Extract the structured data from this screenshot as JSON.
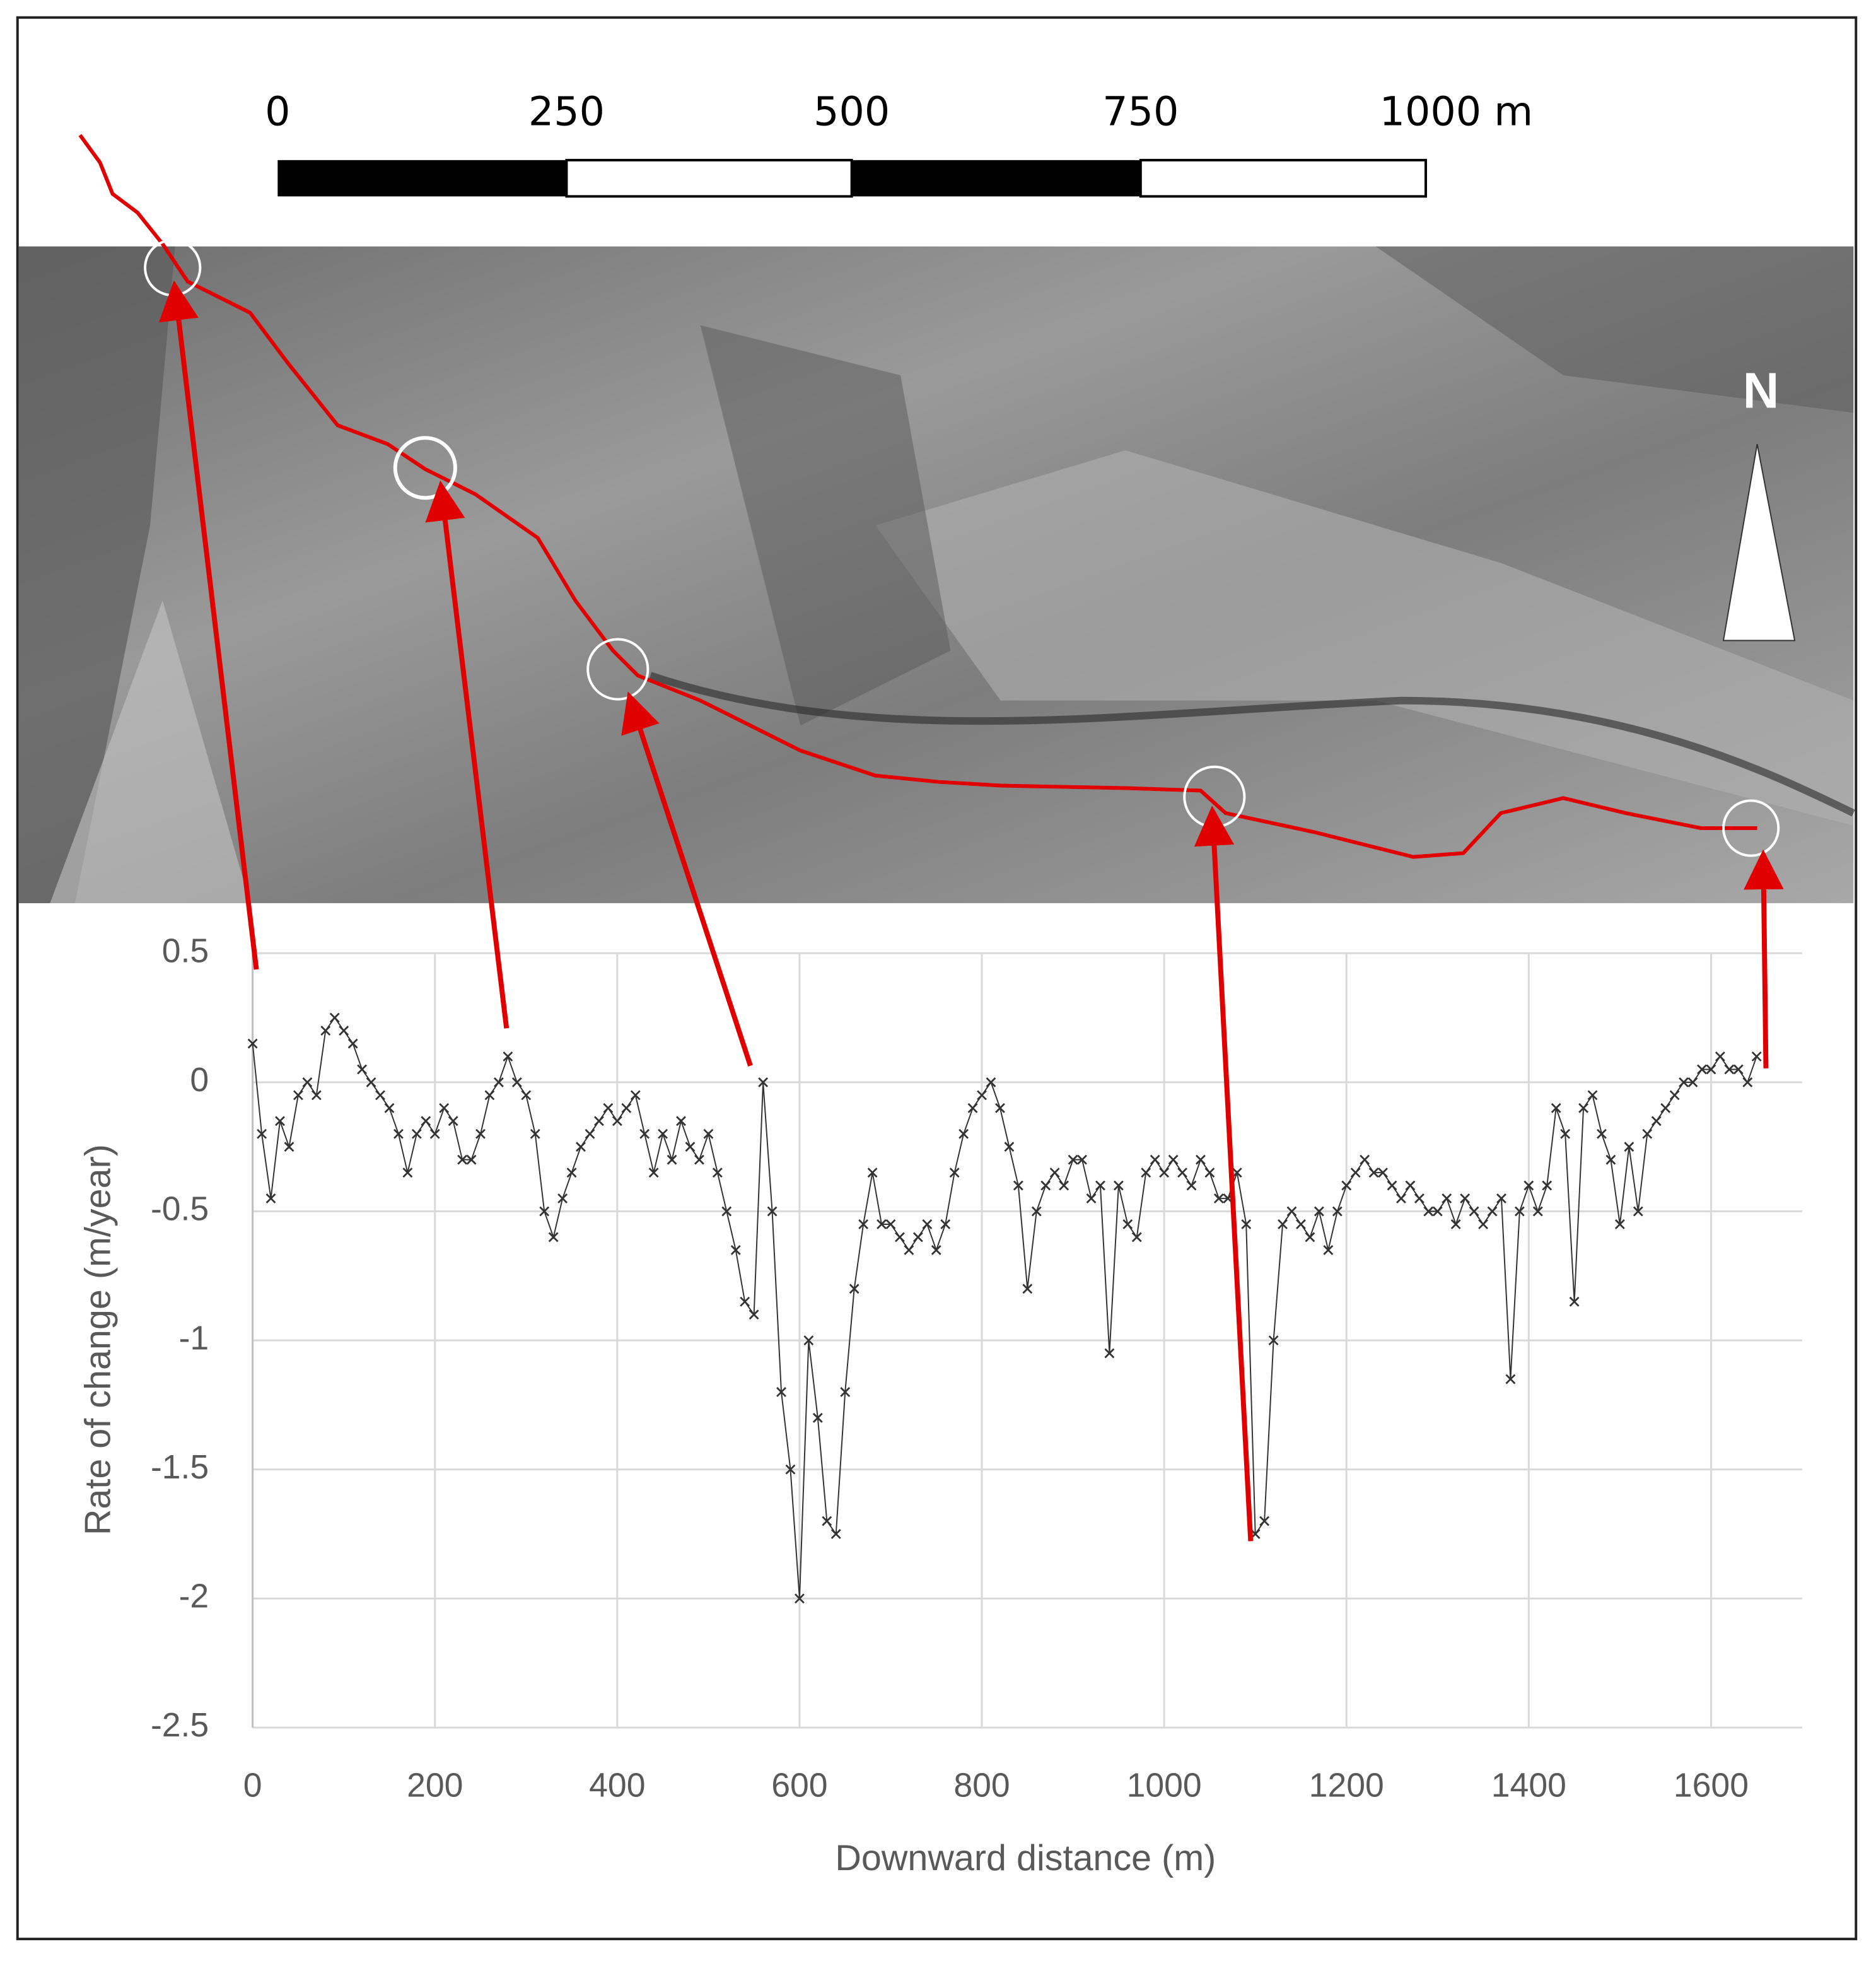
{
  "map": {
    "scale_labels": [
      "0",
      "250",
      "500",
      "750",
      "1000 m"
    ],
    "north": "N"
  },
  "chart_data": {
    "type": "line",
    "y_label": "Rate of change (m/year)",
    "x_label": "Downward distance (m)",
    "x": [
      0,
      10,
      20,
      30,
      40,
      50,
      60,
      70,
      80,
      90,
      100,
      110,
      120,
      130,
      140,
      150,
      160,
      170,
      180,
      190,
      200,
      210,
      220,
      230,
      240,
      250,
      260,
      270,
      280,
      290,
      300,
      310,
      320,
      330,
      340,
      350,
      360,
      370,
      380,
      390,
      400,
      410,
      420,
      430,
      440,
      450,
      460,
      470,
      480,
      490,
      500,
      510,
      520,
      530,
      540,
      550,
      560,
      570,
      580,
      590,
      600,
      610,
      620,
      630,
      640,
      650,
      660,
      670,
      680,
      690,
      700,
      710,
      720,
      730,
      740,
      750,
      760,
      770,
      780,
      790,
      800,
      810,
      820,
      830,
      840,
      850,
      860,
      870,
      880,
      890,
      900,
      910,
      920,
      930,
      940,
      950,
      960,
      970,
      980,
      990,
      1000,
      1010,
      1020,
      1030,
      1040,
      1050,
      1060,
      1070,
      1080,
      1090,
      1100,
      1110,
      1120,
      1130,
      1140,
      1150,
      1160,
      1170,
      1180,
      1190,
      1200,
      1210,
      1220,
      1230,
      1240,
      1250,
      1260,
      1270,
      1280,
      1290,
      1300,
      1310,
      1320,
      1330,
      1340,
      1350,
      1360,
      1370,
      1380,
      1390,
      1400,
      1410,
      1420,
      1430,
      1440,
      1450,
      1460,
      1470,
      1480,
      1490,
      1500,
      1510,
      1520,
      1530,
      1540,
      1550,
      1560,
      1570,
      1580,
      1590,
      1600,
      1610,
      1620,
      1630,
      1640,
      1650
    ],
    "series": [
      {
        "color": "#333333",
        "values": [
          0.15,
          -0.2,
          -0.45,
          -0.15,
          -0.25,
          -0.05,
          0.0,
          -0.05,
          0.2,
          0.25,
          0.2,
          0.15,
          0.05,
          0.0,
          -0.05,
          -0.1,
          -0.2,
          -0.35,
          -0.2,
          -0.15,
          -0.2,
          -0.1,
          -0.15,
          -0.3,
          -0.3,
          -0.2,
          -0.05,
          0.0,
          0.1,
          0.0,
          -0.05,
          -0.2,
          -0.5,
          -0.6,
          -0.45,
          -0.35,
          -0.25,
          -0.2,
          -0.15,
          -0.1,
          -0.15,
          -0.1,
          -0.05,
          -0.2,
          -0.35,
          -0.2,
          -0.3,
          -0.15,
          -0.25,
          -0.3,
          -0.2,
          -0.35,
          -0.5,
          -0.65,
          -0.85,
          -0.9,
          0.0,
          -0.5,
          -1.2,
          -1.5,
          -2.0,
          -1.0,
          -1.3,
          -1.7,
          -1.75,
          -1.2,
          -0.8,
          -0.55,
          -0.35,
          -0.55,
          -0.55,
          -0.6,
          -0.65,
          -0.6,
          -0.55,
          -0.65,
          -0.55,
          -0.35,
          -0.2,
          -0.1,
          -0.05,
          0.0,
          -0.1,
          -0.25,
          -0.4,
          -0.8,
          -0.5,
          -0.4,
          -0.35,
          -0.4,
          -0.3,
          -0.3,
          -0.45,
          -0.4,
          -1.05,
          -0.4,
          -0.55,
          -0.6,
          -0.35,
          -0.3,
          -0.35,
          -0.3,
          -0.35,
          -0.4,
          -0.3,
          -0.35,
          -0.45,
          -0.45,
          -0.35,
          -0.55,
          -1.75,
          -1.7,
          -1.0,
          -0.55,
          -0.5,
          -0.55,
          -0.6,
          -0.5,
          -0.65,
          -0.5,
          -0.4,
          -0.35,
          -0.3,
          -0.35,
          -0.35,
          -0.4,
          -0.45,
          -0.4,
          -0.45,
          -0.5,
          -0.5,
          -0.45,
          -0.55,
          -0.45,
          -0.5,
          -0.55,
          -0.5,
          -0.45,
          -1.15,
          -0.5,
          -0.4,
          -0.5,
          -0.4,
          -0.1,
          -0.2,
          -0.85,
          -0.1,
          -0.05,
          -0.2,
          -0.3,
          -0.55,
          -0.25,
          -0.5,
          -0.2,
          -0.15,
          -0.1,
          -0.05,
          0.0,
          0.0,
          0.05,
          0.05,
          0.1,
          0.05,
          0.05,
          0.0,
          0.1
        ]
      }
    ],
    "xlim": [
      0,
      1700
    ],
    "xticks": [
      0,
      200,
      400,
      600,
      800,
      1000,
      1200,
      1400,
      1600
    ],
    "ylim": [
      -2.5,
      0.5
    ],
    "yticks": [
      0.5,
      0,
      -0.5,
      -1,
      -1.5,
      -2,
      -2.5
    ],
    "grid": true
  }
}
